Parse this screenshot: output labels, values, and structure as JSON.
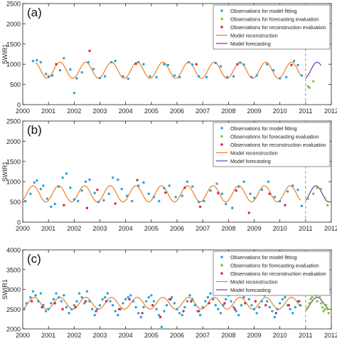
{
  "chart_data": [
    {
      "type": "scatter",
      "panel_label": "(a)",
      "ylabel": "SWIR1",
      "xlim": [
        2000,
        2012
      ],
      "ylim": [
        0,
        2500
      ],
      "yticks": [
        0,
        500,
        1000,
        1500,
        2000,
        2500
      ],
      "xticks": [
        2000,
        2001,
        2002,
        2003,
        2004,
        2005,
        2006,
        2007,
        2008,
        2009,
        2010,
        2011,
        2012
      ],
      "divider_x": 2011,
      "legend_position": "top-right",
      "reconstruction": {
        "mean": 850,
        "amplitude": 200,
        "phase": 0.45,
        "x_range": [
          2000.5,
          2010.8
        ]
      },
      "forecast": {
        "mean": 850,
        "amplitude": 200,
        "phase": 0.45,
        "x_range": [
          2011.0,
          2011.6
        ]
      },
      "fitting_points": [
        [
          2000.4,
          1080
        ],
        [
          2000.55,
          1100
        ],
        [
          2000.7,
          1050
        ],
        [
          2000.9,
          760
        ],
        [
          2001.0,
          700
        ],
        [
          2001.15,
          720
        ],
        [
          2001.45,
          850
        ],
        [
          2001.6,
          1150
        ],
        [
          2001.85,
          870
        ],
        [
          2002.0,
          290
        ],
        [
          2002.1,
          650
        ],
        [
          2002.3,
          800
        ],
        [
          2002.55,
          1050
        ],
        [
          2002.75,
          880
        ],
        [
          2003.0,
          660
        ],
        [
          2003.2,
          700
        ],
        [
          2003.45,
          1050
        ],
        [
          2003.6,
          1080
        ],
        [
          2003.9,
          700
        ],
        [
          2004.1,
          640
        ],
        [
          2004.5,
          1050
        ],
        [
          2004.7,
          1000
        ],
        [
          2004.95,
          700
        ],
        [
          2005.2,
          680
        ],
        [
          2005.5,
          1000
        ],
        [
          2005.65,
          980
        ],
        [
          2005.9,
          720
        ],
        [
          2006.1,
          680
        ],
        [
          2006.45,
          1050
        ],
        [
          2006.6,
          990
        ],
        [
          2006.85,
          700
        ],
        [
          2007.15,
          680
        ],
        [
          2007.5,
          1030
        ],
        [
          2007.7,
          950
        ],
        [
          2007.95,
          680
        ],
        [
          2008.2,
          700
        ],
        [
          2008.45,
          1040
        ],
        [
          2008.6,
          990
        ],
        [
          2008.9,
          680
        ],
        [
          2009.1,
          720
        ],
        [
          2009.5,
          1000
        ],
        [
          2009.75,
          850
        ],
        [
          2010.0,
          650
        ],
        [
          2010.25,
          680
        ],
        [
          2010.55,
          1080
        ],
        [
          2010.7,
          980
        ],
        [
          2010.85,
          720
        ]
      ],
      "evaluation_points": [
        [
          2011.1,
          450
        ],
        [
          2011.15,
          420
        ],
        [
          2011.3,
          580
        ]
      ],
      "reconstruction_points": [
        [
          2001.3,
          1000
        ],
        [
          2002.6,
          1330
        ],
        [
          2004.4,
          1010
        ],
        [
          2006.75,
          1000
        ],
        [
          2008.35,
          1000
        ],
        [
          2010.45,
          980
        ]
      ]
    },
    {
      "type": "scatter",
      "panel_label": "(b)",
      "ylabel": "SWIR1",
      "xlim": [
        2000,
        2012
      ],
      "ylim": [
        0,
        2500
      ],
      "yticks": [
        0,
        500,
        1000,
        1500,
        2000,
        2500
      ],
      "xticks": [
        2000,
        2001,
        2002,
        2003,
        2004,
        2005,
        2006,
        2007,
        2008,
        2009,
        2010,
        2011,
        2012
      ],
      "divider_x": 2011,
      "legend_position": "top-right",
      "reconstruction": {
        "mean": 700,
        "amplitude": 200,
        "phase": 0.4,
        "x_range": [
          2000.0,
          2010.8
        ]
      },
      "forecast": {
        "mean": 700,
        "amplitude": 200,
        "phase": 0.4,
        "x_range": [
          2011.0,
          2011.9
        ]
      },
      "fitting_points": [
        [
          2000.1,
          520
        ],
        [
          2000.3,
          700
        ],
        [
          2000.45,
          980
        ],
        [
          2000.55,
          1030
        ],
        [
          2000.7,
          820
        ],
        [
          2000.8,
          900
        ],
        [
          2000.95,
          580
        ],
        [
          2001.1,
          380
        ],
        [
          2001.25,
          450
        ],
        [
          2001.4,
          880
        ],
        [
          2001.55,
          1100
        ],
        [
          2001.7,
          1200
        ],
        [
          2001.85,
          850
        ],
        [
          2002.0,
          560
        ],
        [
          2002.15,
          520
        ],
        [
          2002.3,
          780
        ],
        [
          2002.45,
          1000
        ],
        [
          2002.6,
          1050
        ],
        [
          2002.8,
          720
        ],
        [
          2002.95,
          500
        ],
        [
          2003.15,
          540
        ],
        [
          2003.35,
          700
        ],
        [
          2003.5,
          1100
        ],
        [
          2003.7,
          1050
        ],
        [
          2003.85,
          820
        ],
        [
          2004.05,
          650
        ],
        [
          2004.25,
          520
        ],
        [
          2004.5,
          900
        ],
        [
          2004.7,
          980
        ],
        [
          2004.9,
          700
        ],
        [
          2005.1,
          620
        ],
        [
          2005.3,
          520
        ],
        [
          2005.5,
          840
        ],
        [
          2005.7,
          900
        ],
        [
          2005.95,
          620
        ],
        [
          2006.2,
          650
        ],
        [
          2006.4,
          1000
        ],
        [
          2006.6,
          880
        ],
        [
          2006.85,
          500
        ],
        [
          2007.05,
          520
        ],
        [
          2007.3,
          780
        ],
        [
          2007.55,
          950
        ],
        [
          2007.75,
          700
        ],
        [
          2007.9,
          450
        ],
        [
          2008.15,
          350
        ],
        [
          2008.4,
          880
        ],
        [
          2008.6,
          1000
        ],
        [
          2008.85,
          700
        ],
        [
          2009.0,
          600
        ],
        [
          2009.3,
          800
        ],
        [
          2009.55,
          1000
        ],
        [
          2009.8,
          620
        ],
        [
          2010.0,
          520
        ],
        [
          2010.3,
          760
        ],
        [
          2010.5,
          900
        ],
        [
          2010.7,
          800
        ],
        [
          2010.85,
          400
        ]
      ],
      "evaluation_points": [
        [
          2011.1,
          580
        ],
        [
          2011.3,
          700
        ],
        [
          2011.45,
          850
        ],
        [
          2011.6,
          820
        ],
        [
          2011.75,
          600
        ],
        [
          2011.85,
          420
        ]
      ],
      "reconstruction_points": [
        [
          2001.6,
          420
        ],
        [
          2002.5,
          350
        ],
        [
          2002.9,
          800
        ],
        [
          2003.6,
          460
        ],
        [
          2004.45,
          1040
        ],
        [
          2005.55,
          730
        ],
        [
          2006.3,
          850
        ],
        [
          2006.9,
          380
        ],
        [
          2007.6,
          720
        ],
        [
          2008.3,
          780
        ],
        [
          2008.8,
          230
        ],
        [
          2009.6,
          700
        ],
        [
          2010.2,
          420
        ]
      ]
    },
    {
      "type": "scatter",
      "panel_label": "(c)",
      "ylabel": "SWIR1",
      "xlim": [
        2000,
        2012
      ],
      "ylim": [
        2000,
        4000
      ],
      "yticks": [
        2000,
        2500,
        3000,
        3500,
        4000
      ],
      "xticks": [
        2000,
        2001,
        2002,
        2003,
        2004,
        2005,
        2006,
        2007,
        2008,
        2009,
        2010,
        2011,
        2012
      ],
      "divider_x": 2011,
      "legend_position": "top-right",
      "reconstruction": {
        "mean": 2650,
        "amplitude": 150,
        "phase": 0.45,
        "x_range": [
          2000.0,
          2010.8
        ]
      },
      "forecast": {
        "mean": 2650,
        "amplitude": 150,
        "phase": 0.45,
        "x_range": [
          2011.0,
          2011.9
        ]
      },
      "fitting_points": [
        [
          2000.05,
          2500
        ],
        [
          2000.15,
          2650
        ],
        [
          2000.3,
          2800
        ],
        [
          2000.4,
          2950
        ],
        [
          2000.5,
          2850
        ],
        [
          2000.6,
          2700
        ],
        [
          2000.7,
          2900
        ],
        [
          2000.8,
          2600
        ],
        [
          2000.9,
          2450
        ],
        [
          2001.0,
          2500
        ],
        [
          2001.1,
          2650
        ],
        [
          2001.2,
          2750
        ],
        [
          2001.3,
          2900
        ],
        [
          2001.4,
          2800
        ],
        [
          2001.5,
          2700
        ],
        [
          2001.6,
          2850
        ],
        [
          2001.7,
          2550
        ],
        [
          2001.8,
          2400
        ],
        [
          2001.9,
          2500
        ],
        [
          2002.0,
          2600
        ],
        [
          2002.1,
          2700
        ],
        [
          2002.2,
          2900
        ],
        [
          2002.3,
          2800
        ],
        [
          2002.4,
          2650
        ],
        [
          2002.5,
          2950
        ],
        [
          2002.6,
          2700
        ],
        [
          2002.7,
          2500
        ],
        [
          2002.8,
          2350
        ],
        [
          2002.9,
          2500
        ],
        [
          2003.0,
          2600
        ],
        [
          2003.1,
          2750
        ],
        [
          2003.2,
          2800
        ],
        [
          2003.3,
          2900
        ],
        [
          2003.4,
          2700
        ],
        [
          2003.5,
          2600
        ],
        [
          2003.6,
          2450
        ],
        [
          2003.7,
          2350
        ],
        [
          2003.8,
          2500
        ],
        [
          2003.9,
          2650
        ],
        [
          2004.0,
          2750
        ],
        [
          2004.1,
          2800
        ],
        [
          2004.2,
          2850
        ],
        [
          2004.3,
          2700
        ],
        [
          2004.4,
          2550
        ],
        [
          2004.5,
          2400
        ],
        [
          2004.6,
          2300
        ],
        [
          2004.7,
          2550
        ],
        [
          2004.8,
          2700
        ],
        [
          2004.9,
          2800
        ],
        [
          2005.0,
          2850
        ],
        [
          2005.1,
          2700
        ],
        [
          2005.2,
          2500
        ],
        [
          2005.3,
          2350
        ],
        [
          2005.4,
          2050
        ],
        [
          2005.5,
          2450
        ],
        [
          2005.6,
          2600
        ],
        [
          2005.7,
          2750
        ],
        [
          2005.8,
          2800
        ],
        [
          2005.9,
          2650
        ],
        [
          2006.0,
          2500
        ],
        [
          2006.1,
          2400
        ],
        [
          2006.2,
          2350
        ],
        [
          2006.3,
          2550
        ],
        [
          2006.4,
          2700
        ],
        [
          2006.5,
          2850
        ],
        [
          2006.6,
          2750
        ],
        [
          2006.7,
          2600
        ],
        [
          2006.8,
          2450
        ],
        [
          2006.9,
          2350
        ],
        [
          2007.0,
          2550
        ],
        [
          2007.1,
          2700
        ],
        [
          2007.2,
          2800
        ],
        [
          2007.3,
          2900
        ],
        [
          2007.4,
          2750
        ],
        [
          2007.5,
          2600
        ],
        [
          2007.6,
          2500
        ],
        [
          2007.7,
          2400
        ],
        [
          2007.8,
          2600
        ],
        [
          2007.9,
          2750
        ],
        [
          2008.0,
          2850
        ],
        [
          2008.1,
          2700
        ],
        [
          2008.2,
          2550
        ],
        [
          2008.3,
          2450
        ],
        [
          2008.4,
          2350
        ],
        [
          2008.5,
          2600
        ],
        [
          2008.6,
          2800
        ],
        [
          2008.7,
          2900
        ],
        [
          2008.8,
          2750
        ],
        [
          2008.9,
          2600
        ],
        [
          2009.0,
          2500
        ],
        [
          2009.1,
          2400
        ],
        [
          2009.2,
          2550
        ],
        [
          2009.3,
          2700
        ],
        [
          2009.4,
          2850
        ],
        [
          2009.5,
          2700
        ],
        [
          2009.6,
          2550
        ],
        [
          2009.7,
          2450
        ],
        [
          2009.8,
          2300
        ],
        [
          2009.9,
          2500
        ],
        [
          2010.0,
          2650
        ],
        [
          2010.1,
          2750
        ],
        [
          2010.2,
          2800
        ],
        [
          2010.3,
          2600
        ],
        [
          2010.4,
          2500
        ],
        [
          2010.5,
          2400
        ],
        [
          2010.6,
          2550
        ],
        [
          2010.7,
          2700
        ],
        [
          2010.8,
          2600
        ]
      ],
      "evaluation_points": [
        [
          2011.05,
          2500
        ],
        [
          2011.1,
          2550
        ],
        [
          2011.15,
          2650
        ],
        [
          2011.2,
          2750
        ],
        [
          2011.25,
          2800
        ],
        [
          2011.3,
          2900
        ],
        [
          2011.35,
          3000
        ],
        [
          2011.4,
          2850
        ],
        [
          2011.45,
          2700
        ],
        [
          2011.5,
          2950
        ],
        [
          2011.55,
          2800
        ],
        [
          2011.6,
          2650
        ],
        [
          2011.65,
          2550
        ],
        [
          2011.7,
          2450
        ],
        [
          2011.75,
          2500
        ],
        [
          2011.8,
          2600
        ],
        [
          2011.85,
          2500
        ],
        [
          2011.9,
          2400
        ]
      ],
      "reconstruction_points": [
        [
          2000.35,
          2700
        ],
        [
          2000.75,
          2550
        ],
        [
          2001.25,
          2650
        ],
        [
          2001.55,
          2500
        ],
        [
          2002.05,
          2550
        ],
        [
          2002.45,
          2700
        ],
        [
          2002.85,
          2450
        ],
        [
          2003.25,
          2700
        ],
        [
          2003.75,
          2500
        ],
        [
          2004.15,
          2750
        ],
        [
          2004.65,
          2400
        ],
        [
          2005.05,
          2600
        ],
        [
          2005.35,
          2300
        ],
        [
          2005.75,
          2750
        ],
        [
          2006.25,
          2450
        ],
        [
          2006.55,
          2700
        ],
        [
          2006.85,
          2450
        ],
        [
          2007.25,
          2650
        ],
        [
          2007.45,
          3000
        ],
        [
          2007.85,
          2650
        ],
        [
          2008.25,
          2500
        ],
        [
          2008.65,
          2650
        ],
        [
          2009.05,
          2700
        ],
        [
          2009.45,
          2600
        ],
        [
          2009.85,
          2400
        ],
        [
          2010.35,
          2600
        ],
        [
          2010.75,
          2700
        ]
      ]
    }
  ],
  "legend": {
    "fitting": "Observations for model fitting",
    "evaluation": "Observations for forecasting evaluation",
    "reconstruction_eval": "Observations for reconstruction evaluation",
    "reconstruction": "Model reconstruction",
    "forecasting": "Model forecasting"
  },
  "colors": {
    "fitting": "#2ca2d8",
    "evaluation": "#7ccb2f",
    "reconstruction_eval": "#d6283c",
    "reconstruction_line": "#f07e22",
    "forecast_line": "#7b2fa8",
    "divider": "#888888"
  }
}
